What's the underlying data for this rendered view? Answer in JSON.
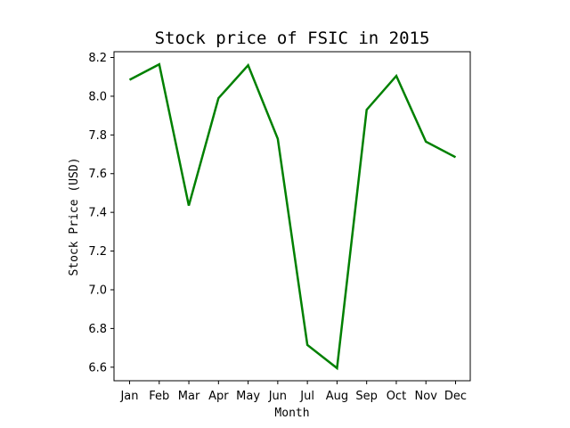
{
  "chart_data": {
    "type": "line",
    "title": "Stock price of FSIC in 2015",
    "xlabel": "Month",
    "ylabel": "Stock Price (USD)",
    "categories": [
      "Jan",
      "Feb",
      "Mar",
      "Apr",
      "May",
      "Jun",
      "Jul",
      "Aug",
      "Sep",
      "Oct",
      "Nov",
      "Dec"
    ],
    "series": [
      {
        "values": [
          8.085,
          8.165,
          7.435,
          7.99,
          8.16,
          7.78,
          6.715,
          6.595,
          7.93,
          8.105,
          7.765,
          7.685
        ],
        "color": "#008000"
      }
    ],
    "yticks": [
      6.6,
      6.8,
      7.0,
      7.2,
      7.4,
      7.6,
      7.8,
      8.0,
      8.2
    ],
    "ylim": [
      6.53,
      8.23
    ],
    "grid": false,
    "legend": "none"
  }
}
